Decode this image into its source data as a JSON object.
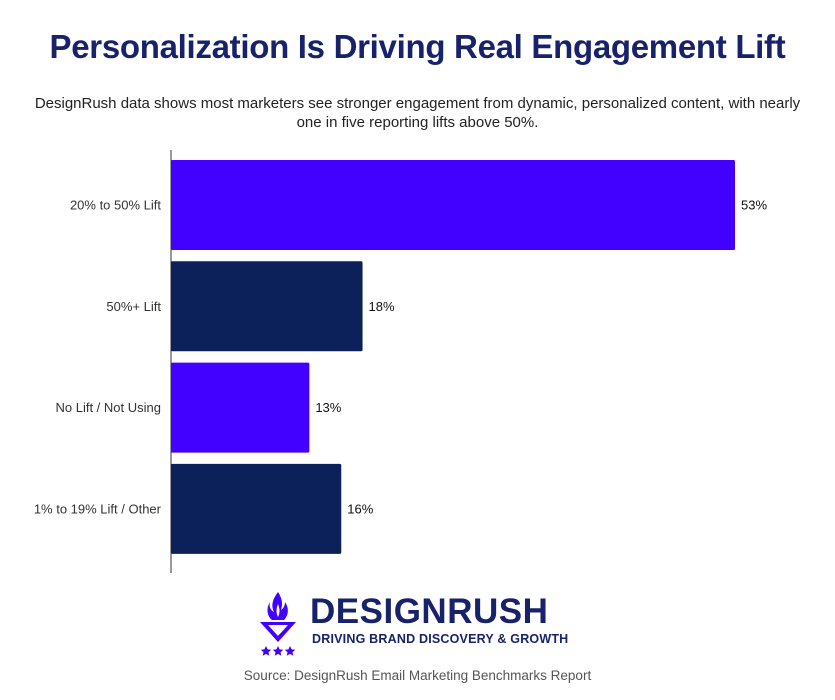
{
  "title": "Personalization Is Driving Real Engagement Lift",
  "subtitle": "DesignRush data shows most marketers see stronger engagement from dynamic, personalized content, with nearly one in five reporting lifts above 50%.",
  "chart_data": {
    "type": "bar",
    "orientation": "horizontal",
    "categories": [
      "20% to 50% Lift",
      "50%+ Lift",
      "No Lift / Not Using",
      "1% to 19% Lift / Other"
    ],
    "values": [
      53,
      18,
      13,
      16
    ],
    "value_labels": [
      "53%",
      "18%",
      "13%",
      "16%"
    ],
    "bar_colors": [
      "#4100ff",
      "#0c2159",
      "#4100ff",
      "#0c2159"
    ],
    "xlim": [
      0,
      55
    ],
    "grid": false,
    "legend": "none",
    "title": "",
    "xlabel": "",
    "ylabel": ""
  },
  "brand": {
    "name": "DESIGNRUSH",
    "tagline": "DRIVING BRAND DISCOVERY & GROWTH",
    "logo_icon": "flame-shield-stars-icon",
    "colors": {
      "navy": "#17226b",
      "purple": "#4100ff"
    }
  },
  "source": "Source: DesignRush Email Marketing Benchmarks Report"
}
